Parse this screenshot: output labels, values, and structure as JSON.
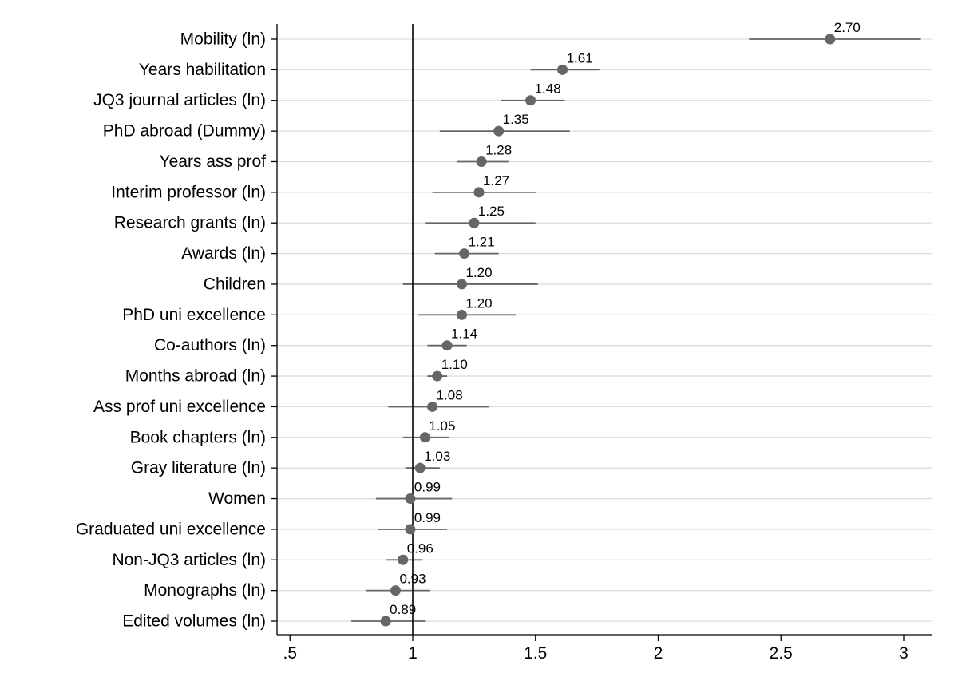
{
  "chart_data": {
    "type": "scatter",
    "subtype": "coefficient-plot",
    "title": "",
    "xlabel": "",
    "ylabel": "",
    "xlim": [
      0.45,
      3.12
    ],
    "xticks": [
      {
        "value": 0.5,
        "label": ".5"
      },
      {
        "value": 1,
        "label": "1"
      },
      {
        "value": 1.5,
        "label": "1.5"
      },
      {
        "value": 2,
        "label": "2"
      },
      {
        "value": 2.5,
        "label": "2.5"
      },
      {
        "value": 3,
        "label": "3"
      }
    ],
    "reference_line": 1,
    "grid": "horizontal",
    "colors": {
      "marker": "#666666",
      "ci_line": "#666666",
      "grid": "#dddddd",
      "axis": "#000000",
      "reference": "#000000"
    },
    "points": [
      {
        "label": "Mobility (ln)",
        "estimate": 2.7,
        "value_label": "2.70",
        "ci": [
          2.37,
          3.07
        ]
      },
      {
        "label": "Years habilitation",
        "estimate": 1.61,
        "value_label": "1.61",
        "ci": [
          1.48,
          1.76
        ]
      },
      {
        "label": "JQ3 journal articles (ln)",
        "estimate": 1.48,
        "value_label": "1.48",
        "ci": [
          1.36,
          1.62
        ]
      },
      {
        "label": "PhD abroad (Dummy)",
        "estimate": 1.35,
        "value_label": "1.35",
        "ci": [
          1.11,
          1.64
        ]
      },
      {
        "label": "Years ass prof",
        "estimate": 1.28,
        "value_label": "1.28",
        "ci": [
          1.18,
          1.39
        ]
      },
      {
        "label": "Interim professor (ln)",
        "estimate": 1.27,
        "value_label": "1.27",
        "ci": [
          1.08,
          1.5
        ]
      },
      {
        "label": "Research grants (ln)",
        "estimate": 1.25,
        "value_label": "1.25",
        "ci": [
          1.05,
          1.5
        ]
      },
      {
        "label": "Awards (ln)",
        "estimate": 1.21,
        "value_label": "1.21",
        "ci": [
          1.09,
          1.35
        ]
      },
      {
        "label": "Children",
        "estimate": 1.2,
        "value_label": "1.20",
        "ci": [
          0.96,
          1.51
        ]
      },
      {
        "label": "PhD uni excellence",
        "estimate": 1.2,
        "value_label": "1.20",
        "ci": [
          1.02,
          1.42
        ]
      },
      {
        "label": "Co-authors (ln)",
        "estimate": 1.14,
        "value_label": "1.14",
        "ci": [
          1.06,
          1.22
        ]
      },
      {
        "label": "Months abroad (ln)",
        "estimate": 1.1,
        "value_label": "1.10",
        "ci": [
          1.06,
          1.14
        ]
      },
      {
        "label": "Ass prof uni excellence",
        "estimate": 1.08,
        "value_label": "1.08",
        "ci": [
          0.9,
          1.31
        ]
      },
      {
        "label": "Book chapters (ln)",
        "estimate": 1.05,
        "value_label": "1.05",
        "ci": [
          0.96,
          1.15
        ]
      },
      {
        "label": "Gray literature (ln)",
        "estimate": 1.03,
        "value_label": "1.03",
        "ci": [
          0.97,
          1.11
        ]
      },
      {
        "label": "Women",
        "estimate": 0.99,
        "value_label": "0.99",
        "ci": [
          0.85,
          1.16
        ]
      },
      {
        "label": "Graduated uni excellence",
        "estimate": 0.99,
        "value_label": "0.99",
        "ci": [
          0.86,
          1.14
        ]
      },
      {
        "label": "Non-JQ3 articles (ln)",
        "estimate": 0.96,
        "value_label": "0.96",
        "ci": [
          0.89,
          1.04
        ]
      },
      {
        "label": "Monographs (ln)",
        "estimate": 0.93,
        "value_label": "0.93",
        "ci": [
          0.81,
          1.07
        ]
      },
      {
        "label": "Edited volumes (ln)",
        "estimate": 0.89,
        "value_label": "0.89",
        "ci": [
          0.75,
          1.05
        ]
      }
    ]
  }
}
